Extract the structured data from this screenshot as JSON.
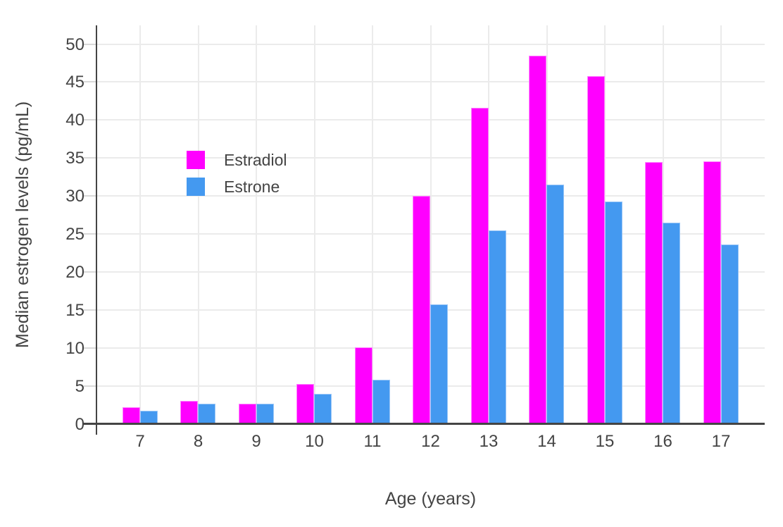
{
  "chart_data": {
    "type": "bar",
    "title": "",
    "xlabel": "Age (years)",
    "ylabel": "Median estrogen levels (pg/mL)",
    "categories": [
      "7",
      "8",
      "9",
      "10",
      "11",
      "12",
      "13",
      "14",
      "15",
      "16",
      "17"
    ],
    "series": [
      {
        "name": "Estradiol",
        "color": "#FF00FF",
        "edge_color": "#FF85FF",
        "values": [
          2.2,
          3.0,
          2.6,
          5.2,
          10.1,
          30.0,
          41.6,
          48.5,
          45.8,
          34.5,
          34.6
        ]
      },
      {
        "name": "Estrone",
        "color": "#4499F0",
        "edge_color": "#9CC7F7",
        "values": [
          1.7,
          2.6,
          2.6,
          3.9,
          5.8,
          15.7,
          25.5,
          31.5,
          29.3,
          26.5,
          23.6
        ]
      }
    ],
    "ylim": [
      0,
      52.4
    ],
    "yticks": [
      0,
      5,
      10,
      15,
      20,
      25,
      30,
      35,
      40,
      45,
      50
    ],
    "grid": true,
    "legend_position": "inside-top-left",
    "background_color": "#FFFFFF",
    "grid_color": "#EBEBEB",
    "axis_color": "#444444",
    "text_color": "#444444"
  }
}
